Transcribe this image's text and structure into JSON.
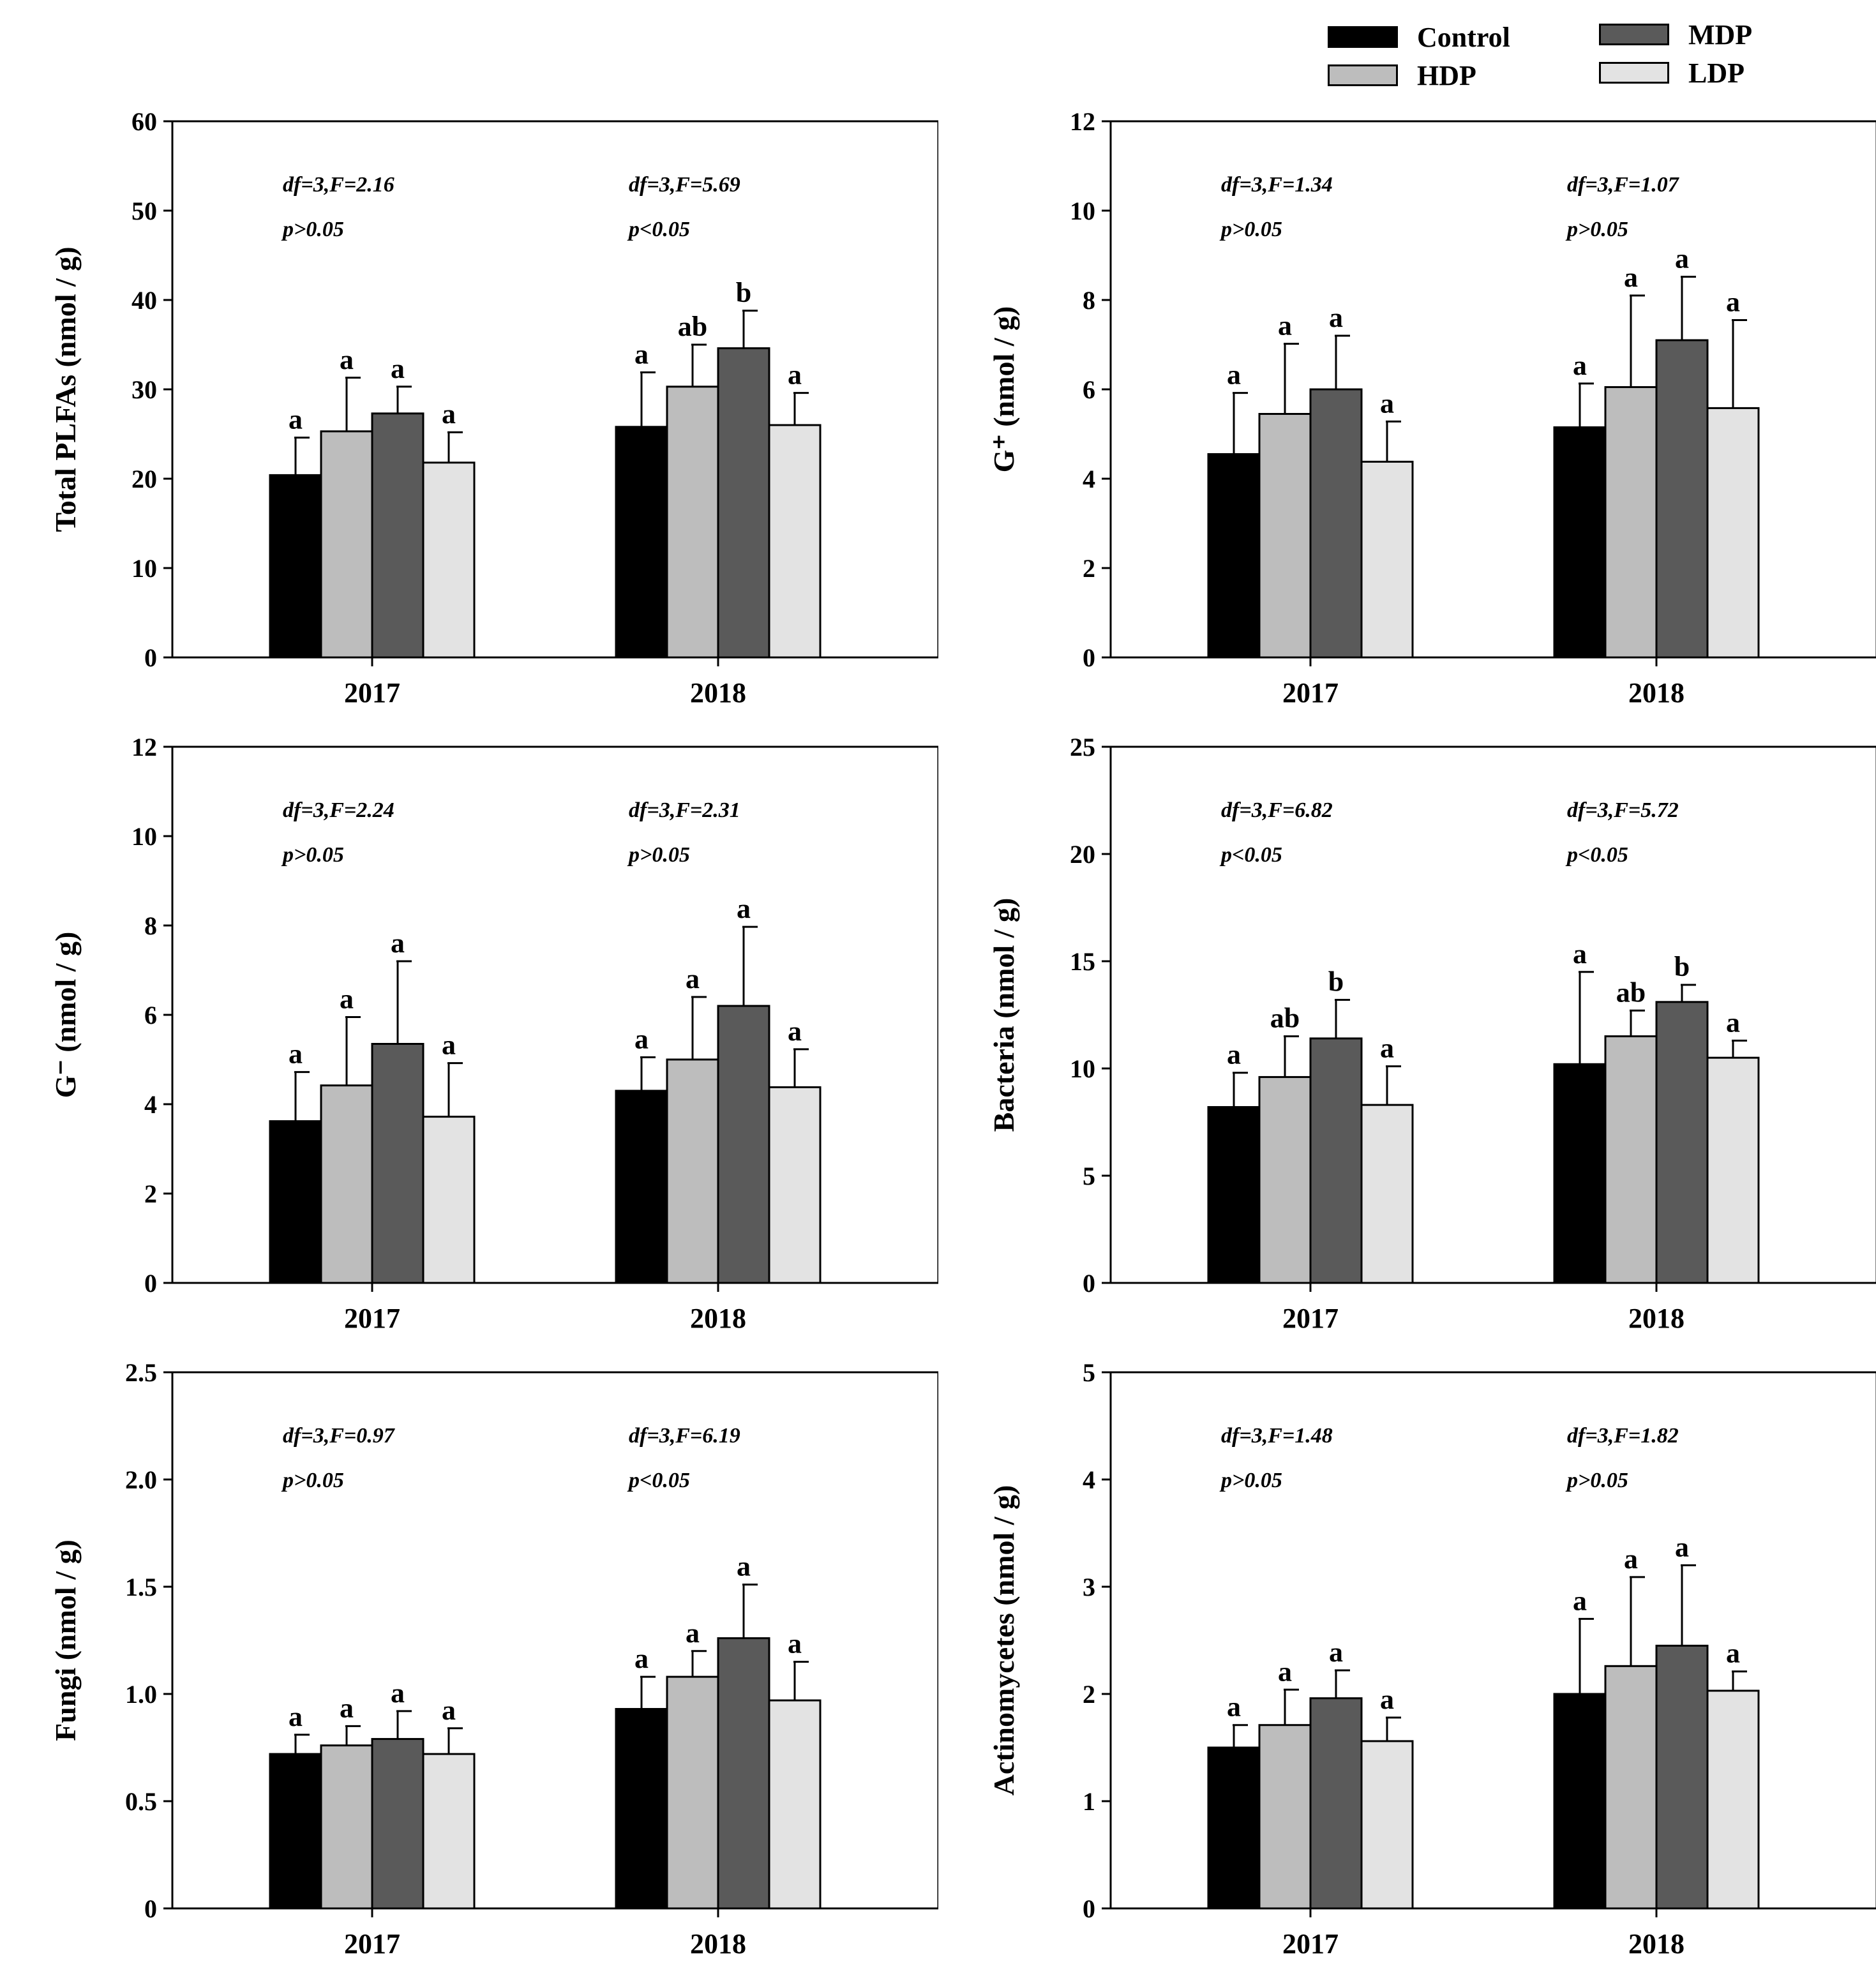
{
  "legend": {
    "items": [
      {
        "label": "Control",
        "color": "#000000"
      },
      {
        "label": "MDP",
        "color": "#5a5a5a"
      },
      {
        "label": "HDP",
        "color": "#bdbdbd"
      },
      {
        "label": "LDP",
        "color": "#e3e3e3"
      }
    ]
  },
  "chart_data": [
    {
      "type": "bar",
      "ylabel": "Total PLFAs (nmol / g)",
      "ylim": [
        0,
        60
      ],
      "yticks": [
        "0",
        "10",
        "20",
        "30",
        "40",
        "50",
        "60"
      ],
      "categories": [
        "2017",
        "2018"
      ],
      "series": [
        {
          "name": "Control",
          "color": "#000000",
          "values": [
            20.4,
            25.8
          ],
          "errors": [
            4.2,
            6.1
          ],
          "letters": [
            "a",
            "a"
          ]
        },
        {
          "name": "HDP",
          "color": "#bdbdbd",
          "values": [
            25.3,
            30.3
          ],
          "errors": [
            6.0,
            4.7
          ],
          "letters": [
            "a",
            "ab"
          ]
        },
        {
          "name": "MDP",
          "color": "#5a5a5a",
          "values": [
            27.3,
            34.6
          ],
          "errors": [
            3.0,
            4.2
          ],
          "letters": [
            "a",
            "b"
          ]
        },
        {
          "name": "LDP",
          "color": "#e3e3e3",
          "values": [
            21.8,
            26.0
          ],
          "errors": [
            3.4,
            3.6
          ],
          "letters": [
            "a",
            "a"
          ]
        }
      ],
      "stats": [
        {
          "df": "df=3,F=2.16",
          "p": "p>0.05"
        },
        {
          "df": "df=3,F=5.69",
          "p": "p<0.05"
        }
      ]
    },
    {
      "type": "bar",
      "ylabel": "G⁺ (nmol / g)",
      "ylim": [
        0,
        12
      ],
      "yticks": [
        "0",
        "2",
        "4",
        "6",
        "8",
        "10",
        "12"
      ],
      "categories": [
        "2017",
        "2018"
      ],
      "series": [
        {
          "name": "Control",
          "color": "#000000",
          "values": [
            4.55,
            5.15
          ],
          "errors": [
            1.37,
            0.98
          ],
          "letters": [
            "a",
            "a"
          ]
        },
        {
          "name": "HDP",
          "color": "#bdbdbd",
          "values": [
            5.45,
            6.05
          ],
          "errors": [
            1.57,
            2.05
          ],
          "letters": [
            "a",
            "a"
          ]
        },
        {
          "name": "MDP",
          "color": "#5a5a5a",
          "values": [
            6.0,
            7.1
          ],
          "errors": [
            1.2,
            1.42
          ],
          "letters": [
            "a",
            "a"
          ]
        },
        {
          "name": "LDP",
          "color": "#e3e3e3",
          "values": [
            4.38,
            5.58
          ],
          "errors": [
            0.9,
            1.97
          ],
          "letters": [
            "a",
            "a"
          ]
        }
      ],
      "stats": [
        {
          "df": "df=3,F=1.34",
          "p": "p>0.05"
        },
        {
          "df": "df=3,F=1.07",
          "p": "p>0.05"
        }
      ]
    },
    {
      "type": "bar",
      "ylabel": "G⁻ (nmol / g)",
      "ylim": [
        0,
        12
      ],
      "yticks": [
        "0",
        "2",
        "4",
        "6",
        "8",
        "10",
        "12"
      ],
      "categories": [
        "2017",
        "2018"
      ],
      "series": [
        {
          "name": "Control",
          "color": "#000000",
          "values": [
            3.62,
            4.3
          ],
          "errors": [
            1.1,
            0.75
          ],
          "letters": [
            "a",
            "a"
          ]
        },
        {
          "name": "HDP",
          "color": "#bdbdbd",
          "values": [
            4.42,
            5.0
          ],
          "errors": [
            1.53,
            1.4
          ],
          "letters": [
            "a",
            "a"
          ]
        },
        {
          "name": "MDP",
          "color": "#5a5a5a",
          "values": [
            5.35,
            6.2
          ],
          "errors": [
            1.85,
            1.77
          ],
          "letters": [
            "a",
            "a"
          ]
        },
        {
          "name": "LDP",
          "color": "#e3e3e3",
          "values": [
            3.72,
            4.38
          ],
          "errors": [
            1.2,
            0.85
          ],
          "letters": [
            "a",
            "a"
          ]
        }
      ],
      "stats": [
        {
          "df": "df=3,F=2.24",
          "p": "p>0.05"
        },
        {
          "df": "df=3,F=2.31",
          "p": "p>0.05"
        }
      ]
    },
    {
      "type": "bar",
      "ylabel": "Bacteria (nmol / g)",
      "ylim": [
        0,
        25
      ],
      "yticks": [
        "0",
        "5",
        "10",
        "15",
        "20",
        "25"
      ],
      "categories": [
        "2017",
        "2018"
      ],
      "series": [
        {
          "name": "Control",
          "color": "#000000",
          "values": [
            8.2,
            10.2
          ],
          "errors": [
            1.6,
            4.3
          ],
          "letters": [
            "a",
            "a"
          ]
        },
        {
          "name": "HDP",
          "color": "#bdbdbd",
          "values": [
            9.6,
            11.5
          ],
          "errors": [
            1.9,
            1.2
          ],
          "letters": [
            "ab",
            "ab"
          ]
        },
        {
          "name": "MDP",
          "color": "#5a5a5a",
          "values": [
            11.4,
            13.1
          ],
          "errors": [
            1.8,
            0.8
          ],
          "letters": [
            "b",
            "b"
          ]
        },
        {
          "name": "LDP",
          "color": "#e3e3e3",
          "values": [
            8.3,
            10.5
          ],
          "errors": [
            1.8,
            0.8
          ],
          "letters": [
            "a",
            "a"
          ]
        }
      ],
      "stats": [
        {
          "df": "df=3,F=6.82",
          "p": "p<0.05"
        },
        {
          "df": "df=3,F=5.72",
          "p": "p<0.05"
        }
      ]
    },
    {
      "type": "bar",
      "ylabel": "Fungi (nmol / g)",
      "ylim": [
        0,
        2.5
      ],
      "yticks": [
        "0",
        "0.5",
        "1.0",
        "1.5",
        "2.0",
        "2.5"
      ],
      "categories": [
        "2017",
        "2018"
      ],
      "series": [
        {
          "name": "Control",
          "color": "#000000",
          "values": [
            0.72,
            0.93
          ],
          "errors": [
            0.09,
            0.15
          ],
          "letters": [
            "a",
            "a"
          ]
        },
        {
          "name": "HDP",
          "color": "#bdbdbd",
          "values": [
            0.76,
            1.08
          ],
          "errors": [
            0.09,
            0.12
          ],
          "letters": [
            "a",
            "a"
          ]
        },
        {
          "name": "MDP",
          "color": "#5a5a5a",
          "values": [
            0.79,
            1.26
          ],
          "errors": [
            0.13,
            0.25
          ],
          "letters": [
            "a",
            "a"
          ]
        },
        {
          "name": "LDP",
          "color": "#e3e3e3",
          "values": [
            0.72,
            0.97
          ],
          "errors": [
            0.12,
            0.18
          ],
          "letters": [
            "a",
            "a"
          ]
        }
      ],
      "stats": [
        {
          "df": "df=3,F=0.97",
          "p": "p>0.05"
        },
        {
          "df": "df=3,F=6.19",
          "p": "p<0.05"
        }
      ]
    },
    {
      "type": "bar",
      "ylabel": "Actinomycetes (nmol / g)",
      "ylim": [
        0,
        5
      ],
      "yticks": [
        "0",
        "1",
        "2",
        "3",
        "4",
        "5"
      ],
      "categories": [
        "2017",
        "2018"
      ],
      "series": [
        {
          "name": "Control",
          "color": "#000000",
          "values": [
            1.5,
            2.0
          ],
          "errors": [
            0.21,
            0.7
          ],
          "letters": [
            "a",
            "a"
          ]
        },
        {
          "name": "HDP",
          "color": "#bdbdbd",
          "values": [
            1.71,
            2.26
          ],
          "errors": [
            0.33,
            0.83
          ],
          "letters": [
            "a",
            "a"
          ]
        },
        {
          "name": "MDP",
          "color": "#5a5a5a",
          "values": [
            1.96,
            2.45
          ],
          "errors": [
            0.26,
            0.75
          ],
          "letters": [
            "a",
            "a"
          ]
        },
        {
          "name": "LDP",
          "color": "#e3e3e3",
          "values": [
            1.56,
            2.03
          ],
          "errors": [
            0.22,
            0.18
          ],
          "letters": [
            "a",
            "a"
          ]
        }
      ],
      "stats": [
        {
          "df": "df=3,F=1.48",
          "p": "p>0.05"
        },
        {
          "df": "df=3,F=1.82",
          "p": "p>0.05"
        }
      ]
    }
  ]
}
